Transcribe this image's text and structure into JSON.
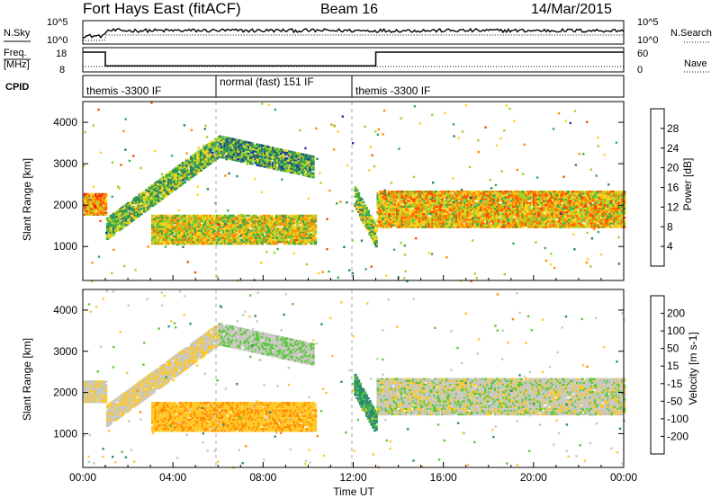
{
  "header": {
    "title": "Fort Hays East (fitACF)",
    "beam": "Beam 16",
    "date": "14/Mar/2015"
  },
  "noise_panel": {
    "left_label": "N.Sky",
    "left_ticks": [
      "10^5",
      "10^0"
    ],
    "right_label": "N.Search",
    "right_ticks": [
      "10^5",
      "10^0"
    ]
  },
  "freq_panel": {
    "left_label_1": "Freq.",
    "left_label_2": "[MHz]",
    "left_ticks": [
      "18",
      "8"
    ],
    "right_label": "Nave",
    "right_ticks": [
      "60",
      "0"
    ]
  },
  "cpid_panel": {
    "label": "CPID",
    "segments": [
      {
        "start": 0,
        "end": 6,
        "text": "themis -3300 IF"
      },
      {
        "start": 6,
        "end": 12,
        "text": "normal (fast) 151 IF"
      },
      {
        "start": 12,
        "end": 24,
        "text": "themis -3300 IF"
      }
    ]
  },
  "x_axis": {
    "label": "Time UT",
    "ticks": [
      "00:00",
      "04:00",
      "08:00",
      "12:00",
      "16:00",
      "20:00",
      "00:00"
    ]
  },
  "power_panel": {
    "ylabel": "Slant Range [km]",
    "yticks": [
      "4000",
      "3000",
      "2000",
      "1000"
    ],
    "colorbar_label": "Power [dB]",
    "colorbar_ticks": [
      "28",
      "24",
      "20",
      "16",
      "12",
      "8",
      "4"
    ],
    "colors": [
      "#0a1ef0",
      "#1e3ca0",
      "#2d8060",
      "#3caa4a",
      "#a0d22a",
      "#ffd21e",
      "#ff8c00",
      "#ff4a00",
      "#e60000"
    ]
  },
  "velocity_panel": {
    "ylabel": "Slant Range [km]",
    "yticks": [
      "4000",
      "3000",
      "2000",
      "1000"
    ],
    "colorbar_label": "Velocity [m s-1]",
    "colorbar_ticks": [
      "200",
      "100",
      "50",
      "15",
      "-15",
      "-50",
      "-100",
      "-200"
    ],
    "colors": [
      "#0a1ec8",
      "#1e50a0",
      "#2d8c6e",
      "#5ac83c",
      "#c8c8c0",
      "#ffc828",
      "#ff8c00",
      "#ff4000",
      "#e60000"
    ]
  },
  "chart_data": {
    "type": "heatmap",
    "x_range_hours": [
      0,
      24
    ],
    "y_range_km": [
      180,
      4500
    ],
    "frequency_mhz": [
      {
        "start": 0,
        "end": 1,
        "value": 18
      },
      {
        "start": 1,
        "end": 13,
        "value": 9
      },
      {
        "start": 13,
        "end": 24,
        "value": 18
      }
    ],
    "features": [
      {
        "name": "dayside_band_early",
        "x_start": 0,
        "x_end": 1.0,
        "y_center": 2000,
        "y_width": 500,
        "power_db": 22,
        "velocity": -10
      },
      {
        "name": "rising_arc_morning",
        "x_start": 1.0,
        "x_end": 6.0,
        "y_start": 1400,
        "y_end": 3400,
        "power_db": 14,
        "velocity": -10
      },
      {
        "name": "upper_arc",
        "x_start": 6.0,
        "x_end": 10.2,
        "y_start": 3400,
        "y_end": 2900,
        "power_db": 12,
        "velocity": 10
      },
      {
        "name": "lower_blob",
        "x_start": 3.0,
        "x_end": 10.3,
        "y_center": 1400,
        "y_width": 700,
        "power_db": 18,
        "velocity": -40
      },
      {
        "name": "pre_noon_descent",
        "x_start": 12.0,
        "x_end": 13.0,
        "y_start": 2200,
        "y_end": 1200,
        "power_db": 16,
        "velocity": 60
      },
      {
        "name": "afternoon_band",
        "x_start": 13.0,
        "x_end": 24.0,
        "y_center": 1900,
        "y_width": 900,
        "power_db": 20,
        "velocity": 0
      }
    ]
  }
}
